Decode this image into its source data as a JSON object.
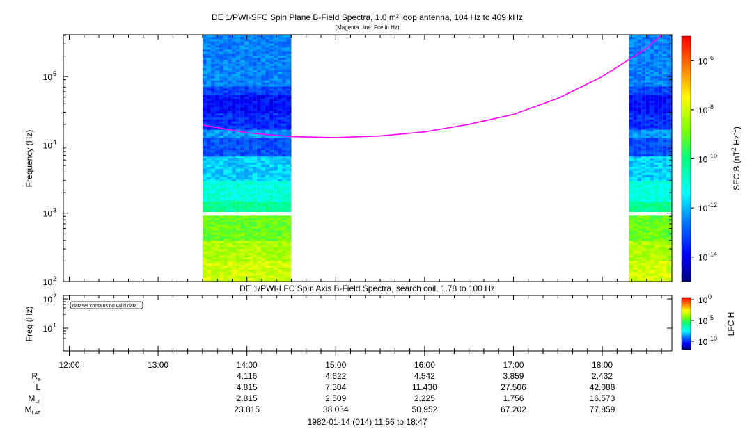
{
  "chart_data": [
    {
      "type": "heatmap",
      "title": "DE 1/PWI-SFC  Spin Plane B-Field Spectra, 1.0 m² loop antenna, 104 Hz to 409 kHz",
      "subtitle": "(Magenta Line: Fce in Hz)",
      "ylabel": "Frequency (Hz)",
      "yscale": "log",
      "ylim": [
        100,
        409000
      ],
      "yticks": [
        {
          "exp": "2"
        },
        {
          "exp": "3"
        },
        {
          "exp": "4"
        },
        {
          "exp": "5"
        }
      ],
      "xlim": [
        "11:56",
        "18:47"
      ],
      "data_blocks": [
        {
          "start": "13:30",
          "end": "14:30"
        },
        {
          "start": "18:18",
          "end": "18:47"
        }
      ],
      "data_gap_hz": [
        900,
        1050
      ],
      "spectrum_levels": [
        {
          "hz_top": 409000,
          "level": -12.5
        },
        {
          "hz_top": 70000,
          "level": -13.2
        },
        {
          "hz_top": 55000,
          "level": -13.8
        },
        {
          "hz_top": 30000,
          "level": -13.4
        },
        {
          "hz_top": 17000,
          "level": -12.3
        },
        {
          "hz_top": 13000,
          "level": -13.0
        },
        {
          "hz_top": 7000,
          "level": -11.8
        },
        {
          "hz_top": 3000,
          "level": -11.0
        },
        {
          "hz_top": 1500,
          "level": -10.2
        },
        {
          "hz_top": 900,
          "level": -9.0
        },
        {
          "hz_top": 400,
          "level": -8.3
        },
        {
          "hz_top": 200,
          "level": -8.0
        }
      ],
      "fce_line": {
        "color": "#ff00ff",
        "points": [
          {
            "t": "13:30",
            "hz": 19500
          },
          {
            "t": "14:00",
            "hz": 15000
          },
          {
            "t": "14:30",
            "hz": 13200
          },
          {
            "t": "15:00",
            "hz": 12800
          },
          {
            "t": "15:30",
            "hz": 13500
          },
          {
            "t": "16:00",
            "hz": 15500
          },
          {
            "t": "16:30",
            "hz": 20000
          },
          {
            "t": "17:00",
            "hz": 28000
          },
          {
            "t": "17:30",
            "hz": 48000
          },
          {
            "t": "18:00",
            "hz": 100000
          },
          {
            "t": "18:30",
            "hz": 260000
          },
          {
            "t": "18:40",
            "hz": 409000
          }
        ]
      },
      "colorbar": {
        "label": "SFC B (nT² Hz⁻¹)",
        "label_parts": {
          "pre": "SFC B (nT",
          "sup1": "2",
          "mid": " Hz",
          "sup2": "-1",
          "post": ")"
        },
        "range_log10": [
          -15,
          -5
        ],
        "ticks": [
          {
            "exp": "-6"
          },
          {
            "exp": "-8"
          },
          {
            "exp": "-10"
          },
          {
            "exp": "-12"
          },
          {
            "exp": "-14"
          }
        ]
      }
    },
    {
      "type": "heatmap",
      "title": "DE 1/PWI-LFC  Spin Axis B-Field Spectra, search coil, 1.78 to 100 Hz",
      "ylabel": "Freq (Hz)",
      "yscale": "log",
      "yticks": [
        {
          "exp": "1"
        },
        {
          "exp": "2"
        }
      ],
      "annotation": "dataset contains no valid data",
      "colorbar": {
        "label": "LFC H",
        "ticks": [
          {
            "exp": "0"
          },
          {
            "exp": "-5"
          },
          {
            "exp": "-10"
          }
        ]
      }
    }
  ],
  "time_axis": {
    "ticks": [
      "12:00",
      "13:00",
      "14:00",
      "15:00",
      "16:00",
      "17:00",
      "18:00"
    ]
  },
  "ephemeris": {
    "rows": [
      {
        "label": "R",
        "sub": "e",
        "values": [
          "4.116",
          "4.622",
          "4.542",
          "3.859",
          "2.432"
        ]
      },
      {
        "label": "L",
        "sub": "",
        "values": [
          "4.815",
          "7.304",
          "11.430",
          "27.506",
          "42.088"
        ]
      },
      {
        "label": "M",
        "sub": "LT",
        "values": [
          "2.815",
          "2.509",
          "2.225",
          "1.756",
          "16.573"
        ]
      },
      {
        "label": "M",
        "sub": "LAT",
        "values": [
          "23.815",
          "38.034",
          "50.952",
          "67.202",
          "77.859"
        ]
      }
    ]
  },
  "footer": "1982-01-14 (014) 11:56 to 18:47"
}
